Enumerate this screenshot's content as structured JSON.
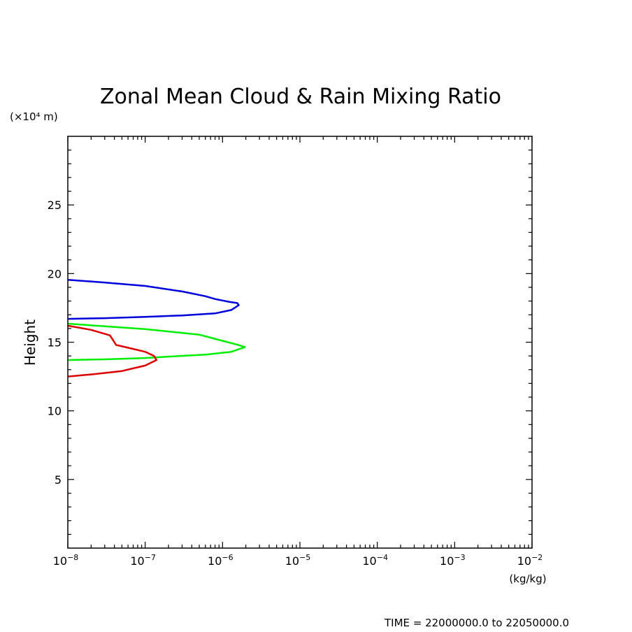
{
  "chart_data": {
    "type": "line",
    "title": "Zonal Mean Cloud & Rain Mixing Ratio",
    "xlabel": "(kg/kg)",
    "ylabel": "Height",
    "y_unit_label": "(×10⁴ m)",
    "x_scale": "log",
    "xlim": [
      1e-08,
      0.01
    ],
    "ylim": [
      0,
      30
    ],
    "x_ticks": [
      {
        "base": "10",
        "exp": "−8"
      },
      {
        "base": "10",
        "exp": "−7"
      },
      {
        "base": "10",
        "exp": "−6"
      },
      {
        "base": "10",
        "exp": "−5"
      },
      {
        "base": "10",
        "exp": "−4"
      },
      {
        "base": "10",
        "exp": "−3"
      },
      {
        "base": "10",
        "exp": "−2"
      }
    ],
    "y_ticks": [
      "5",
      "10",
      "15",
      "20",
      "25"
    ],
    "y_tick_values": [
      5,
      10,
      15,
      20,
      25
    ],
    "grid": false,
    "footer": "TIME = 22000000.0 to 22050000.0",
    "series": [
      {
        "color": "#0000dd",
        "points": [
          [
            1e-08,
            19.55
          ],
          [
            3e-08,
            19.35
          ],
          [
            1e-07,
            19.1
          ],
          [
            3e-07,
            18.7
          ],
          [
            6e-07,
            18.35
          ],
          [
            8e-07,
            18.15
          ],
          [
            1.2e-06,
            17.95
          ],
          [
            1.55e-06,
            17.85
          ],
          [
            1.62e-06,
            17.7
          ],
          [
            1.3e-06,
            17.35
          ],
          [
            8e-07,
            17.1
          ],
          [
            3e-07,
            16.95
          ],
          [
            1e-07,
            16.85
          ],
          [
            3e-08,
            16.75
          ],
          [
            1e-08,
            16.7
          ]
        ]
      },
      {
        "color": "#00ee00",
        "points": [
          [
            1e-08,
            16.35
          ],
          [
            1e-07,
            15.95
          ],
          [
            5e-07,
            15.55
          ],
          [
            1e-06,
            15.1
          ],
          [
            1.6e-06,
            14.8
          ],
          [
            1.95e-06,
            14.65
          ],
          [
            1.3e-06,
            14.3
          ],
          [
            6e-07,
            14.1
          ],
          [
            2e-07,
            13.95
          ],
          [
            1e-07,
            13.85
          ],
          [
            3e-08,
            13.75
          ],
          [
            1e-08,
            13.7
          ]
        ]
      },
      {
        "color": "#dd0000",
        "points": [
          [
            1e-08,
            16.2
          ],
          [
            2e-08,
            15.9
          ],
          [
            3.5e-08,
            15.5
          ],
          [
            3.9e-08,
            15.1
          ],
          [
            4.2e-08,
            14.8
          ],
          [
            6e-08,
            14.6
          ],
          [
            1e-07,
            14.3
          ],
          [
            1.3e-07,
            14.0
          ],
          [
            1.4e-07,
            13.7
          ],
          [
            1e-07,
            13.3
          ],
          [
            5e-08,
            12.9
          ],
          [
            2e-08,
            12.65
          ],
          [
            1e-08,
            12.5
          ]
        ]
      }
    ]
  }
}
